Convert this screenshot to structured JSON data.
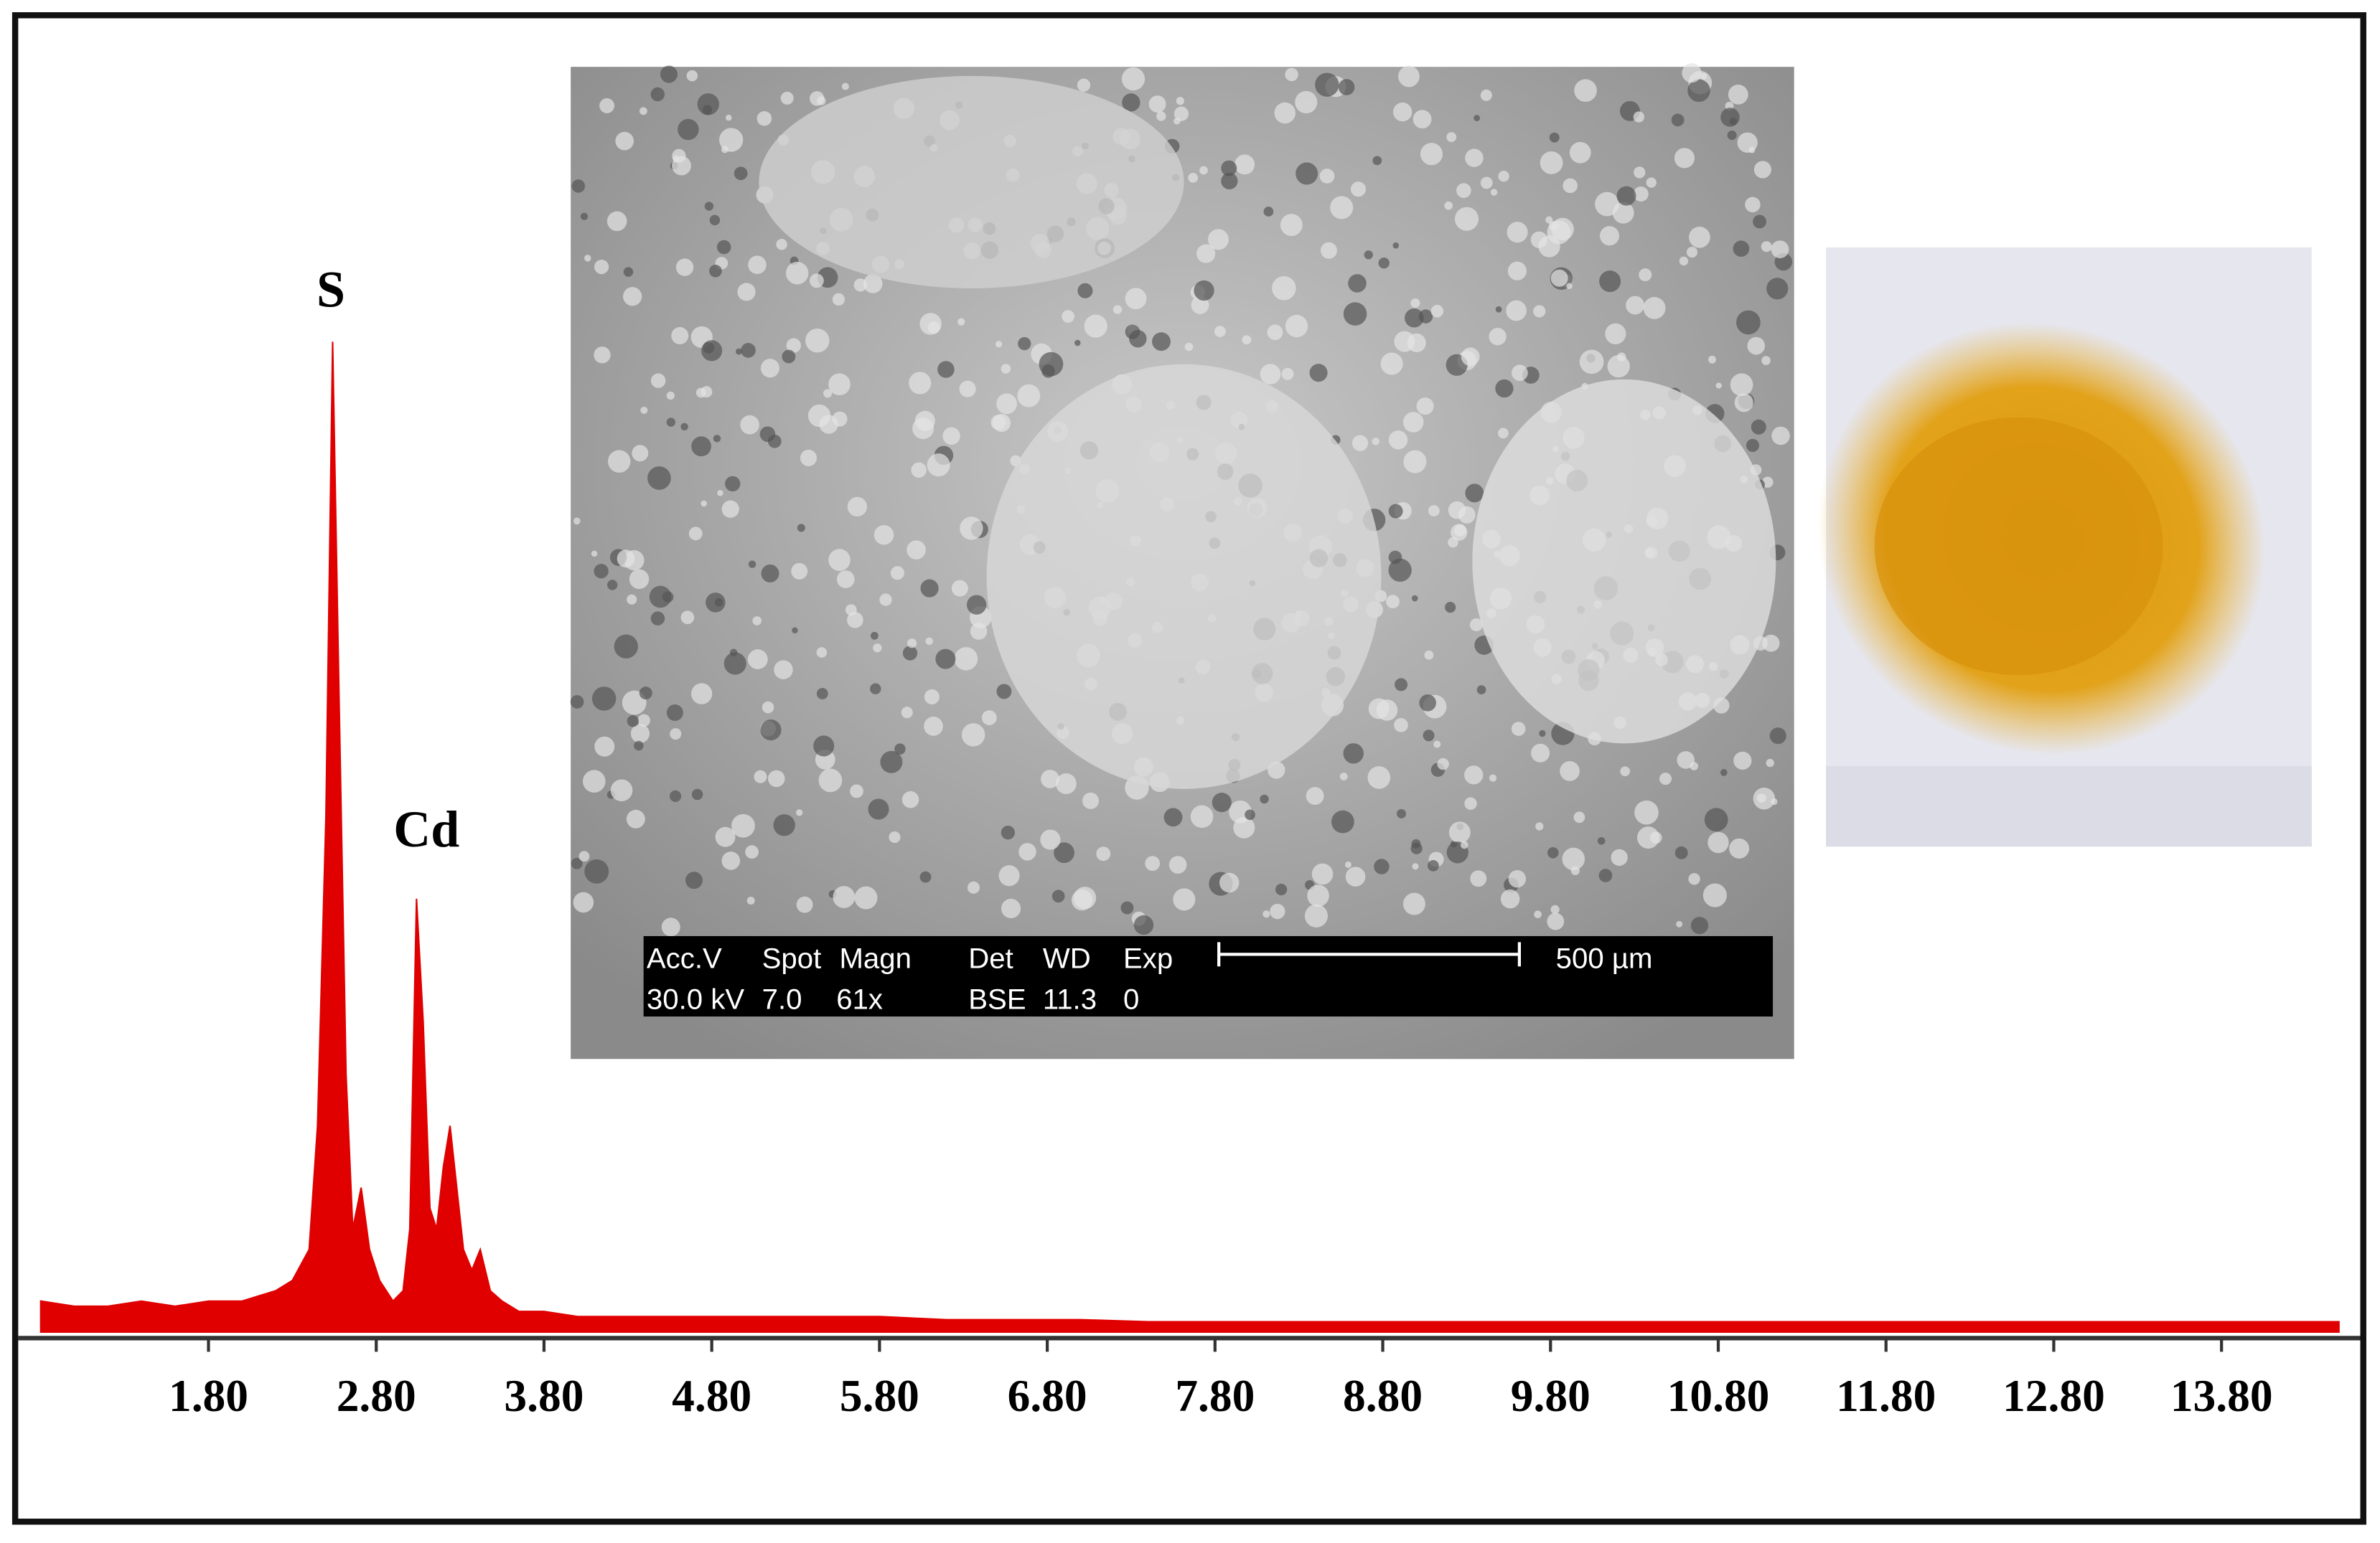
{
  "chart_data": {
    "type": "area",
    "color": "#e00000",
    "x": [
      0.8,
      1.0,
      1.2,
      1.4,
      1.6,
      1.8,
      2.0,
      2.2,
      2.3,
      2.4,
      2.45,
      2.5,
      2.54,
      2.58,
      2.62,
      2.66,
      2.71,
      2.76,
      2.82,
      2.9,
      2.96,
      3.0,
      3.04,
      3.08,
      3.12,
      3.16,
      3.2,
      3.24,
      3.28,
      3.32,
      3.37,
      3.42,
      3.48,
      3.55,
      3.65,
      3.8,
      4.0,
      4.3,
      4.6,
      5.0,
      5.4,
      5.8,
      6.2,
      6.6,
      7.0,
      7.4,
      7.8,
      8.2,
      8.6,
      9.0,
      9.4,
      9.8,
      10.2,
      10.6,
      11.0,
      11.4,
      11.8,
      12.2,
      12.6,
      13.0,
      13.4,
      13.8,
      14.2,
      14.5
    ],
    "values": [
      3,
      2.5,
      2.5,
      3,
      2.5,
      3,
      3,
      4,
      5,
      8,
      20,
      50,
      96,
      60,
      25,
      10,
      14,
      8,
      5,
      3,
      4,
      10,
      42,
      30,
      12,
      10,
      16,
      20,
      14,
      8,
      6,
      8,
      4,
      3,
      2,
      2,
      1.5,
      1.5,
      1.5,
      1.5,
      1.5,
      1.5,
      1.2,
      1.2,
      1.2,
      1,
      1,
      1,
      1,
      1,
      1,
      1,
      1,
      1,
      1,
      1,
      1,
      1,
      1,
      1,
      1,
      1,
      1,
      1
    ],
    "xlim": [
      0.72,
      14.6
    ],
    "ylim": [
      0,
      100
    ],
    "xticks": [
      {
        "value": 1.8,
        "label": "1.80"
      },
      {
        "value": 2.8,
        "label": "2.80"
      },
      {
        "value": 3.8,
        "label": "3.80"
      },
      {
        "value": 4.8,
        "label": "4.80"
      },
      {
        "value": 5.8,
        "label": "5.80"
      },
      {
        "value": 6.8,
        "label": "6.80"
      },
      {
        "value": 7.8,
        "label": "7.80"
      },
      {
        "value": 8.8,
        "label": "8.80"
      },
      {
        "value": 9.8,
        "label": "9.80"
      },
      {
        "value": 10.8,
        "label": "10.80"
      },
      {
        "value": 11.8,
        "label": "11.80"
      },
      {
        "value": 12.8,
        "label": "12.80"
      },
      {
        "value": 13.8,
        "label": "13.80"
      }
    ],
    "annotations": [
      "S",
      "Cd"
    ]
  },
  "sem_image": {
    "header": [
      "Acc.V",
      "Spot",
      "Magn",
      "Det",
      "WD",
      "Exp"
    ],
    "settings": [
      "30.0 kV",
      "7.0",
      "61x",
      "BSE",
      "11.3",
      "0"
    ],
    "scale_bar": "500 µm"
  }
}
